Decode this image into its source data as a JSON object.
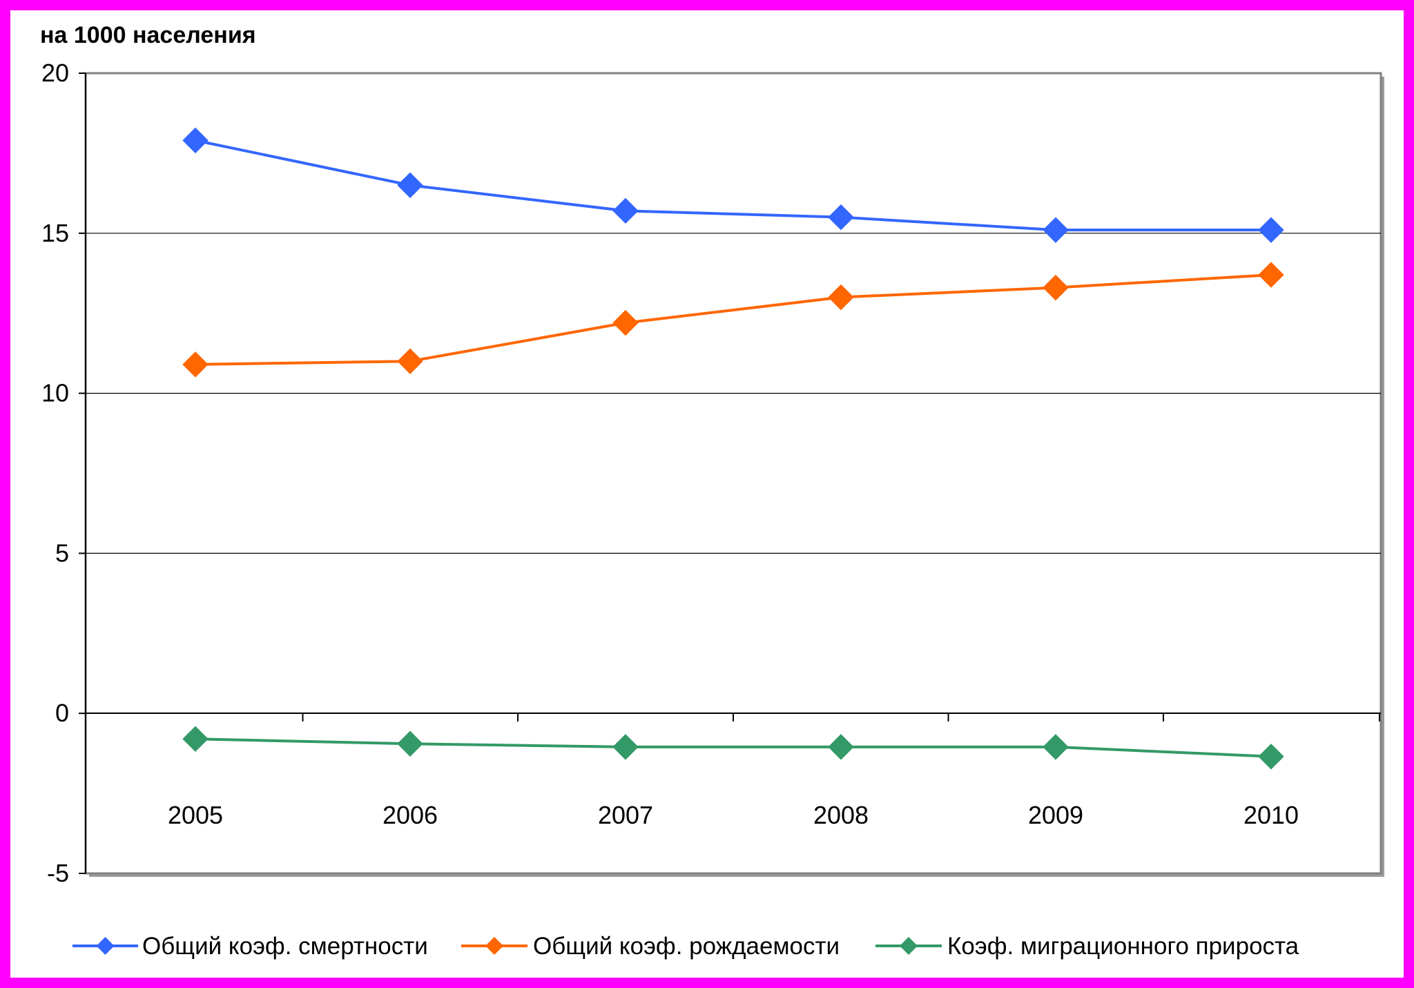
{
  "chart_data": {
    "type": "line",
    "ylabel": "на 1000 населения",
    "ylim": [
      -5,
      20
    ],
    "yticks": [
      -5,
      0,
      5,
      10,
      15,
      20
    ],
    "categories": [
      "2005",
      "2006",
      "2007",
      "2008",
      "2009",
      "2010"
    ],
    "grid": true,
    "legend_position": "bottom",
    "series": [
      {
        "name": "Общий коэф. смертности",
        "color": "#3366ff",
        "values": [
          17.9,
          16.5,
          15.7,
          15.5,
          15.1,
          15.1
        ]
      },
      {
        "name": "Общий коэф. рождаемости",
        "color": "#ff6600",
        "values": [
          10.9,
          11.0,
          12.2,
          13.0,
          13.3,
          13.7
        ]
      },
      {
        "name": "Коэф. миграционного прироста",
        "color": "#339966",
        "values": [
          -0.8,
          -0.95,
          -1.05,
          -1.05,
          -1.05,
          -1.35
        ]
      }
    ]
  },
  "colors": {
    "frame": "#ff00ff",
    "plot_border": "#808080",
    "grid": "#000000"
  },
  "marker_icon": "diamond"
}
